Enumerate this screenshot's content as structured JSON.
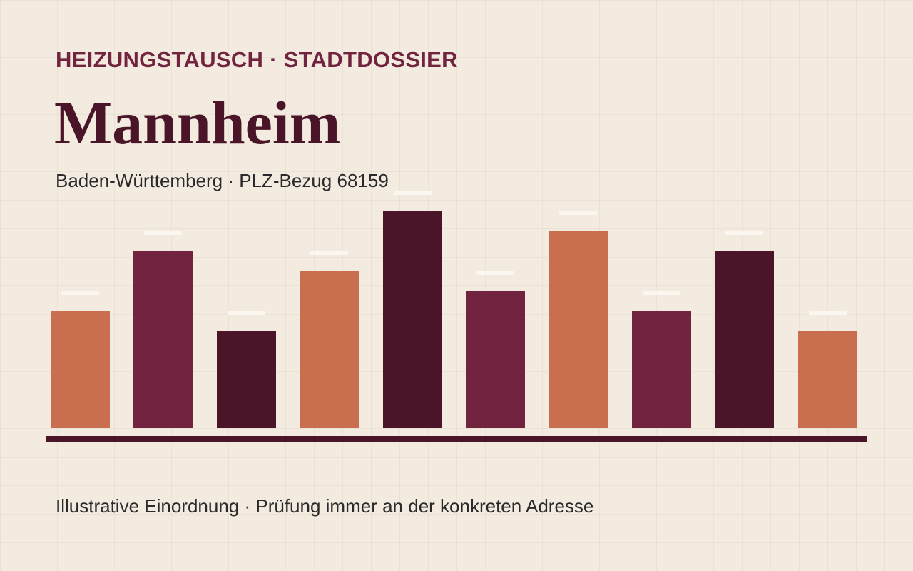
{
  "header": {
    "kicker": "HEIZUNGSTAUSCH · STADTDOSSIER",
    "title": "Mannheim",
    "subtitle": "Baden-Württemberg · PLZ-Bezug 68159"
  },
  "footer": {
    "note": "Illustrative Einordnung · Prüfung immer an der konkreten Adresse"
  }
}
